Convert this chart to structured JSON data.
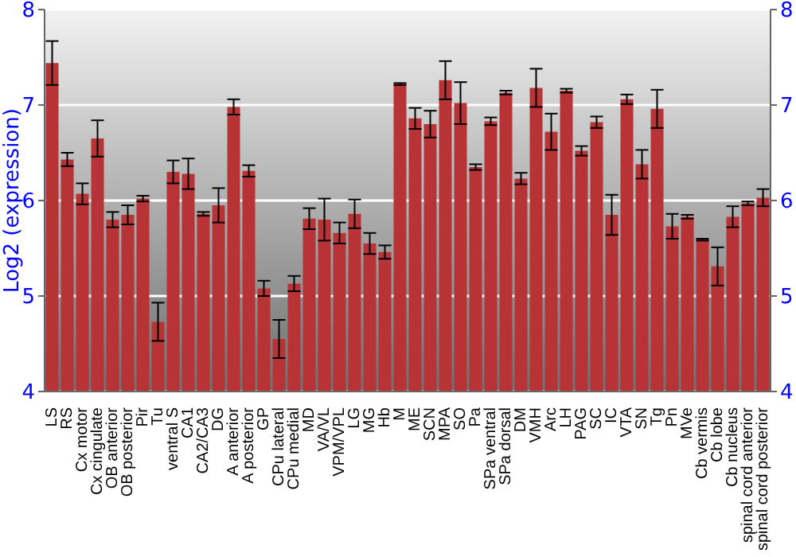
{
  "chart_data": {
    "type": "bar",
    "ylabel": "Log2 (expression)",
    "categories": [
      "LS",
      "RS",
      "Cx motor",
      "Cx cingulate",
      "OB anterior",
      "OB posterior",
      "Pir",
      "Tu",
      "ventral S",
      "CA1",
      "CA2/CA3",
      "DG",
      "A anterior",
      "A posterior",
      "GP",
      "CPu lateral",
      "CPu medial",
      "MD",
      "VA/VL",
      "VPM/VPL",
      "LG",
      "MG",
      "Hb",
      "M",
      "ME",
      "SCN",
      "MPA",
      "SO",
      "Pa",
      "SPa ventral",
      "SPa dorsal",
      "DM",
      "VMH",
      "Arc",
      "LH",
      "PAG",
      "SC",
      "IC",
      "VTA",
      "SN",
      "Tg",
      "Pn",
      "MVe",
      "Cb vermis",
      "Cb lobe",
      "Cb nucleus",
      "spinal cord anterior",
      "spinal cord posterior"
    ],
    "values": [
      7.44,
      6.43,
      6.07,
      6.65,
      5.8,
      5.85,
      6.02,
      4.73,
      6.3,
      6.28,
      5.86,
      5.95,
      6.98,
      6.31,
      5.08,
      4.55,
      5.13,
      5.81,
      5.8,
      5.66,
      5.86,
      5.55,
      5.46,
      7.22,
      6.86,
      6.8,
      7.26,
      7.02,
      6.35,
      6.83,
      7.13,
      6.23,
      7.18,
      6.72,
      7.15,
      6.52,
      6.82,
      5.85,
      7.06,
      6.38,
      6.96,
      5.73,
      5.83,
      5.59,
      5.31,
      5.83,
      5.97,
      6.03
    ],
    "errors": [
      0.23,
      0.07,
      0.11,
      0.19,
      0.08,
      0.1,
      0.03,
      0.2,
      0.12,
      0.16,
      0.02,
      0.18,
      0.08,
      0.06,
      0.08,
      0.2,
      0.08,
      0.11,
      0.22,
      0.11,
      0.15,
      0.11,
      0.07,
      0.01,
      0.11,
      0.14,
      0.2,
      0.22,
      0.03,
      0.04,
      0.02,
      0.06,
      0.2,
      0.19,
      0.02,
      0.05,
      0.06,
      0.21,
      0.05,
      0.15,
      0.2,
      0.13,
      0.02,
      0.01,
      0.2,
      0.11,
      0.02,
      0.09
    ],
    "color": "#b83335",
    "ylim": [
      4,
      8
    ],
    "yticks": [
      4,
      5,
      6,
      7,
      8
    ],
    "y2lim": [
      4,
      8
    ],
    "y2ticks": [
      4,
      5,
      6,
      7,
      8
    ],
    "grid": "y"
  }
}
